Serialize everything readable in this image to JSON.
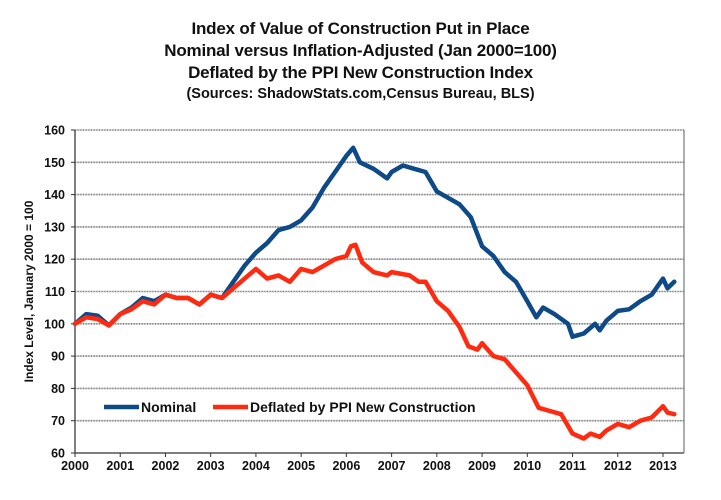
{
  "chart_data": {
    "type": "line",
    "title": [
      "Index of Value of Construction Put in Place",
      "Nominal versus Inflation-Adjusted (Jan 2000=100)",
      "Deflated by the PPI New Construction Index"
    ],
    "subtitle": "(Sources: ShadowStats.com,Census Bureau, BLS)",
    "xlabel": "",
    "ylabel": "Index Level, January 2000 = 100",
    "xlim": [
      2000,
      2013.5
    ],
    "ylim": [
      60,
      160
    ],
    "x_ticks": [
      2000,
      2001,
      2002,
      2003,
      2004,
      2005,
      2006,
      2007,
      2008,
      2009,
      2010,
      2011,
      2012,
      2013
    ],
    "x_tick_labels": [
      "2000",
      "2001",
      "2002",
      "2003",
      "2004",
      "2005",
      "2006",
      "2007",
      "2008",
      "2009",
      "2010",
      "2011",
      "2012",
      "2013"
    ],
    "y_ticks": [
      60,
      70,
      80,
      90,
      100,
      110,
      120,
      130,
      140,
      150,
      160
    ],
    "y_tick_labels": [
      "60",
      "70",
      "80",
      "90",
      "100",
      "110",
      "120",
      "130",
      "140",
      "150",
      "160"
    ],
    "grid": "horizontal",
    "legend": {
      "placement": "bottom-left",
      "entries": [
        "Nominal",
        "Deflated by PPI New Construction"
      ]
    },
    "series": [
      {
        "name": "Nominal",
        "color": "#0d4a87",
        "x": [
          2000.0,
          2000.25,
          2000.5,
          2000.75,
          2001.0,
          2001.25,
          2001.5,
          2001.75,
          2002.0,
          2002.25,
          2002.5,
          2002.75,
          2003.0,
          2003.25,
          2003.5,
          2003.75,
          2004.0,
          2004.25,
          2004.5,
          2004.75,
          2005.0,
          2005.25,
          2005.5,
          2005.75,
          2006.0,
          2006.15,
          2006.3,
          2006.6,
          2006.9,
          2007.0,
          2007.25,
          2007.5,
          2007.75,
          2008.0,
          2008.25,
          2008.5,
          2008.75,
          2009.0,
          2009.25,
          2009.5,
          2009.75,
          2010.0,
          2010.2,
          2010.35,
          2010.6,
          2010.9,
          2011.0,
          2011.25,
          2011.5,
          2011.6,
          2011.75,
          2012.0,
          2012.25,
          2012.5,
          2012.75,
          2013.0,
          2013.1,
          2013.25
        ],
        "values": [
          100,
          103,
          102.5,
          99.5,
          103,
          105,
          108,
          107,
          109,
          108,
          108,
          106,
          109,
          108,
          113,
          118,
          122,
          125,
          129,
          130,
          132,
          136,
          142,
          147,
          152,
          154.5,
          150,
          148,
          145,
          147,
          149,
          148,
          147,
          141,
          139,
          137,
          133,
          124,
          121,
          116,
          113,
          107,
          102,
          105,
          103,
          100,
          96,
          97,
          100,
          98,
          101,
          104,
          104.5,
          107,
          109,
          114,
          111,
          113
        ]
      },
      {
        "name": "Deflated by PPI New Construction",
        "color": "#ff2a10",
        "x": [
          2000.0,
          2000.25,
          2000.5,
          2000.75,
          2001.0,
          2001.25,
          2001.5,
          2001.75,
          2002.0,
          2002.25,
          2002.5,
          2002.75,
          2003.0,
          2003.25,
          2003.5,
          2003.75,
          2004.0,
          2004.25,
          2004.5,
          2004.75,
          2005.0,
          2005.25,
          2005.5,
          2005.75,
          2006.0,
          2006.1,
          2006.2,
          2006.35,
          2006.6,
          2006.9,
          2007.0,
          2007.4,
          2007.6,
          2007.75,
          2008.0,
          2008.25,
          2008.5,
          2008.7,
          2008.9,
          2009.0,
          2009.25,
          2009.5,
          2009.75,
          2010.0,
          2010.25,
          2010.5,
          2010.75,
          2011.0,
          2011.25,
          2011.4,
          2011.6,
          2011.75,
          2012.0,
          2012.25,
          2012.5,
          2012.75,
          2013.0,
          2013.1,
          2013.25
        ],
        "values": [
          100,
          102,
          101.5,
          99.5,
          103,
          104.5,
          107,
          106,
          109,
          108,
          108,
          106,
          109,
          108,
          111,
          114,
          117,
          114,
          115,
          113,
          117,
          116,
          118,
          120,
          121,
          124,
          124.5,
          119,
          116,
          115,
          116,
          115,
          113,
          113,
          107,
          104,
          99,
          93,
          92,
          94,
          90,
          89,
          85,
          81,
          74,
          73,
          72,
          66,
          64.5,
          66,
          65,
          67,
          69,
          68,
          70,
          71,
          74.5,
          72.5,
          72
        ]
      }
    ]
  }
}
